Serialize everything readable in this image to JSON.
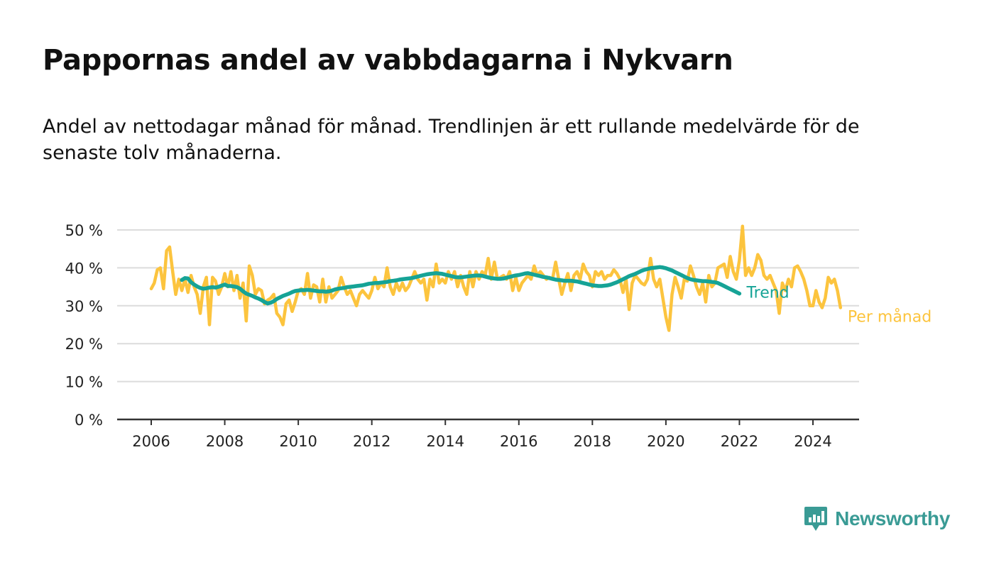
{
  "title": "Pappornas andel av vabbdagarna i Nykvarn",
  "subtitle": "Andel av nettodagar månad för månad. Trendlinjen är ett rullande medelvärde för de senaste tolv månaderna.",
  "logo_text": "Newsworthy",
  "colors": {
    "trend": "#16a396",
    "monthly": "#fcc43e",
    "grid": "#dcdcdc",
    "axis": "#333333",
    "logo": "#3a9b95"
  },
  "chart_data": {
    "type": "line",
    "x_start": "2006-01",
    "x_step": "month",
    "xlim": [
      2006.0,
      2024.4
    ],
    "ylim": [
      0,
      50
    ],
    "x_ticks": [
      2006,
      2008,
      2010,
      2012,
      2014,
      2016,
      2018,
      2020,
      2022,
      2024
    ],
    "x_tick_labels": [
      "2006",
      "2008",
      "2010",
      "2012",
      "2014",
      "2016",
      "2018",
      "2020",
      "2022",
      "2024"
    ],
    "y_ticks": [
      0,
      10,
      20,
      30,
      40,
      50
    ],
    "y_tick_labels": [
      "0 %",
      "10 %",
      "20 %",
      "30 %",
      "40 %",
      "50 %"
    ],
    "grid": true,
    "legend": "inline-right",
    "series": [
      {
        "name": "Per månad",
        "values": [
          34.5,
          36,
          39.5,
          40,
          34.5,
          44.5,
          45.5,
          39,
          33,
          37,
          34,
          37,
          33.5,
          38,
          35,
          33,
          28,
          35,
          37.5,
          25,
          37.5,
          36.5,
          33,
          35,
          38.5,
          35,
          39,
          34,
          38,
          32,
          36,
          26,
          40.5,
          38,
          33,
          34.5,
          34,
          30.5,
          31.5,
          32,
          33,
          28,
          27,
          25,
          30.5,
          31.5,
          28.5,
          31,
          34,
          34.5,
          33,
          38.5,
          32,
          35.5,
          35,
          31,
          37,
          31,
          35,
          32,
          33,
          34,
          37.5,
          35,
          33,
          34,
          32,
          30,
          33,
          34,
          33,
          32,
          34,
          37.5,
          34.5,
          36,
          35,
          40,
          35,
          33,
          36,
          34,
          36,
          34,
          35,
          37,
          39,
          37,
          36,
          37,
          31.5,
          37,
          35,
          41,
          36,
          37,
          36,
          39,
          37,
          39,
          35,
          38,
          35,
          33,
          39,
          35,
          39,
          37,
          39,
          38,
          42.5,
          37,
          41.5,
          37,
          37.5,
          38,
          37,
          39,
          34,
          37.5,
          34,
          36,
          37,
          38,
          37,
          40.5,
          38,
          39,
          38,
          37,
          37.5,
          37,
          41.5,
          37,
          33,
          36,
          38.5,
          34,
          38,
          39,
          37,
          41,
          39,
          38,
          35,
          39,
          38,
          39,
          37,
          38,
          38,
          39.5,
          38.5,
          37,
          33.5,
          37,
          29,
          36,
          38,
          37,
          36,
          35.5,
          37,
          42.5,
          37,
          35,
          37,
          32,
          27,
          23.5,
          33,
          37.5,
          35,
          32,
          37,
          36.5,
          40.5,
          38,
          35,
          33,
          36,
          31,
          38,
          35,
          36,
          40,
          40.5,
          41,
          37.5,
          43,
          39,
          37,
          42,
          51,
          38,
          40,
          38,
          40,
          43.5,
          42,
          38,
          37,
          38,
          36,
          34,
          28,
          36,
          34,
          37,
          35,
          40,
          40.5,
          39,
          37,
          34,
          30,
          30,
          34,
          31,
          29.5,
          32,
          37.5,
          36,
          37,
          34,
          29.5
        ],
        "labels": [
          "Per månad"
        ]
      },
      {
        "name": "Trend",
        "x_start": "2006-11",
        "values": [
          36.8,
          37.3,
          37.2,
          36.2,
          35.6,
          35.1,
          34.7,
          34.5,
          34.6,
          34.8,
          34.9,
          34.8,
          35.0,
          35.3,
          35.6,
          35.2,
          35.2,
          35.1,
          34.9,
          34.5,
          33.8,
          33.2,
          32.9,
          32.6,
          32.2,
          31.9,
          31.5,
          31.0,
          30.6,
          30.8,
          31.2,
          31.8,
          32.2,
          32.6,
          32.9,
          33.2,
          33.6,
          33.9,
          34.0,
          34.1,
          34.1,
          34.2,
          34.1,
          34.0,
          33.9,
          33.8,
          33.8,
          33.7,
          33.8,
          34.0,
          34.3,
          34.5,
          34.6,
          34.7,
          34.9,
          35.0,
          35.1,
          35.2,
          35.3,
          35.4,
          35.6,
          35.8,
          35.9,
          36.0,
          36.0,
          36.1,
          36.2,
          36.3,
          36.5,
          36.6,
          36.7,
          36.9,
          37.0,
          37.1,
          37.2,
          37.3,
          37.5,
          37.7,
          37.9,
          38.1,
          38.3,
          38.4,
          38.5,
          38.6,
          38.5,
          38.4,
          38.2,
          38.0,
          37.8,
          37.6,
          37.5,
          37.5,
          37.6,
          37.7,
          37.8,
          37.9,
          38.0,
          38.0,
          37.9,
          37.7,
          37.5,
          37.3,
          37.2,
          37.1,
          37.1,
          37.2,
          37.4,
          37.6,
          37.8,
          38.0,
          38.1,
          38.3,
          38.5,
          38.6,
          38.4,
          38.2,
          38.0,
          37.8,
          37.6,
          37.5,
          37.3,
          37.1,
          36.9,
          36.8,
          36.7,
          36.6,
          36.6,
          36.6,
          36.5,
          36.4,
          36.2,
          36.0,
          35.8,
          35.6,
          35.4,
          35.3,
          35.2,
          35.2,
          35.3,
          35.4,
          35.6,
          35.9,
          36.2,
          36.6,
          37.0,
          37.4,
          37.8,
          38.1,
          38.4,
          38.8,
          39.2,
          39.5,
          39.7,
          39.9,
          40.0,
          40.1,
          40.2,
          40.1,
          39.9,
          39.6,
          39.3,
          38.9,
          38.5,
          38.1,
          37.7,
          37.3,
          37.0,
          36.8,
          36.7,
          36.6,
          36.5,
          36.5,
          36.4,
          36.3,
          36.2,
          36.0,
          35.6,
          35.2,
          34.8,
          34.4,
          34.0,
          33.6,
          33.2
        ],
        "labels": [
          "Trend"
        ]
      }
    ]
  }
}
